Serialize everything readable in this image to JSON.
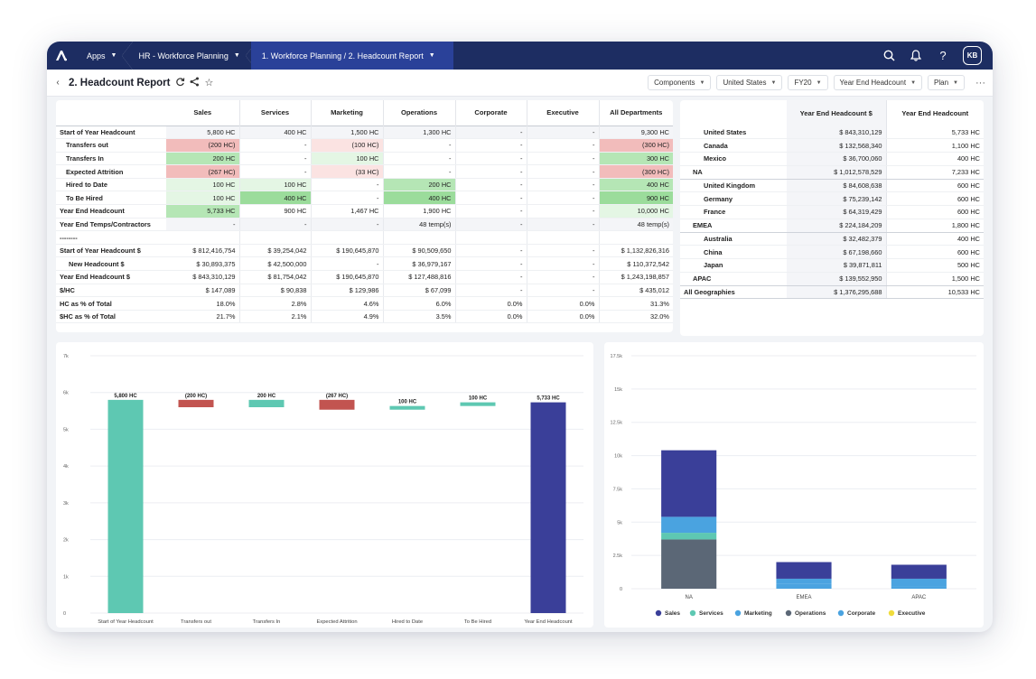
{
  "topnav": {
    "apps_label": "Apps",
    "app_name": "HR - Workforce Planning",
    "path": "1. Workforce Planning / 2. Headcount Report",
    "avatar_initials": "KB"
  },
  "header": {
    "title": "2. Headcount Report",
    "filters": [
      "Components",
      "United States",
      "FY20",
      "Year End Headcount",
      "Plan"
    ],
    "more": "···"
  },
  "main_table": {
    "columns": [
      "",
      "Sales",
      "Services",
      "Marketing",
      "Operations",
      "Corporate",
      "Executive",
      "All Departments"
    ],
    "rows": [
      {
        "label": "Start of Year Headcount",
        "cells": [
          "5,800 HC",
          "400 HC",
          "1,500 HC",
          "1,300 HC",
          "-",
          "-",
          "9,300 HC"
        ]
      },
      {
        "label": "Transfers out",
        "cells": [
          "(200 HC)",
          "-",
          "(100 HC)",
          "-",
          "-",
          "-",
          "(300 HC)"
        ]
      },
      {
        "label": "Transfers In",
        "cells": [
          "200 HC",
          "-",
          "100 HC",
          "-",
          "-",
          "-",
          "300 HC"
        ]
      },
      {
        "label": "Expected Attrition",
        "cells": [
          "(267 HC)",
          "-",
          "(33 HC)",
          "-",
          "-",
          "-",
          "(300 HC)"
        ]
      },
      {
        "label": "Hired to Date",
        "cells": [
          "100 HC",
          "100 HC",
          "-",
          "200 HC",
          "-",
          "-",
          "400 HC"
        ]
      },
      {
        "label": "To Be Hired",
        "cells": [
          "100 HC",
          "400 HC",
          "-",
          "400 HC",
          "-",
          "-",
          "900 HC"
        ]
      },
      {
        "label": "Year End Headcount",
        "cells": [
          "5,733 HC",
          "900 HC",
          "1,467 HC",
          "1,900 HC",
          "-",
          "-",
          "10,000 HC"
        ]
      },
      {
        "label": "Year End Temps/Contractors",
        "cells": [
          "-",
          "-",
          "-",
          "48 temp(s)",
          "-",
          "-",
          "48 temp(s)"
        ]
      },
      {
        "label": "--------",
        "cells": [
          "",
          "",
          "",
          "",
          "",
          "",
          ""
        ]
      },
      {
        "label": "Start of Year Headcount $",
        "cells": [
          "$ 812,416,754",
          "$ 39,254,042",
          "$ 190,645,870",
          "$ 90,509,650",
          "-",
          "-",
          "$ 1,132,826,316"
        ]
      },
      {
        "label": "New Headcount $",
        "cells": [
          "$ 30,893,375",
          "$ 42,500,000",
          "-",
          "$ 36,979,167",
          "-",
          "-",
          "$ 110,372,542"
        ]
      },
      {
        "label": "Year End Headcount $",
        "cells": [
          "$ 843,310,129",
          "$ 81,754,042",
          "$ 190,645,870",
          "$ 127,488,816",
          "-",
          "-",
          "$ 1,243,198,857"
        ]
      },
      {
        "label": "$/HC",
        "cells": [
          "$ 147,089",
          "$ 90,838",
          "$ 129,986",
          "$ 67,099",
          "-",
          "-",
          "$ 435,012"
        ]
      },
      {
        "label": "HC as % of Total",
        "cells": [
          "18.0%",
          "2.8%",
          "4.6%",
          "6.0%",
          "0.0%",
          "0.0%",
          "31.3%"
        ]
      },
      {
        "label": "$HC as % of Total",
        "cells": [
          "21.7%",
          "2.1%",
          "4.9%",
          "3.5%",
          "0.0%",
          "0.0%",
          "32.0%"
        ]
      }
    ]
  },
  "geo_table": {
    "columns": [
      "",
      "Year End Headcount $",
      "Year End Headcount"
    ],
    "rows": [
      {
        "label": "United States",
        "cells": [
          "$ 843,310,129",
          "5,733 HC"
        ]
      },
      {
        "label": "Canada",
        "cells": [
          "$ 132,568,340",
          "1,100 HC"
        ]
      },
      {
        "label": "Mexico",
        "cells": [
          "$ 36,700,060",
          "400 HC"
        ]
      },
      {
        "label": "NA",
        "cells": [
          "$ 1,012,578,529",
          "7,233 HC"
        ]
      },
      {
        "label": "United Kingdom",
        "cells": [
          "$ 84,608,638",
          "600 HC"
        ]
      },
      {
        "label": "Germany",
        "cells": [
          "$ 75,239,142",
          "600 HC"
        ]
      },
      {
        "label": "France",
        "cells": [
          "$ 64,319,429",
          "600 HC"
        ]
      },
      {
        "label": "EMEA",
        "cells": [
          "$ 224,184,209",
          "1,800 HC"
        ]
      },
      {
        "label": "Australia",
        "cells": [
          "$ 32,482,379",
          "400 HC"
        ]
      },
      {
        "label": "China",
        "cells": [
          "$ 67,198,660",
          "600 HC"
        ]
      },
      {
        "label": "Japan",
        "cells": [
          "$ 39,871,811",
          "500 HC"
        ]
      },
      {
        "label": "APAC",
        "cells": [
          "$ 139,552,950",
          "1,500 HC"
        ]
      },
      {
        "label": "All Geographies",
        "cells": [
          "$ 1,376,295,688",
          "10,533 HC"
        ]
      }
    ]
  },
  "chart_data": [
    {
      "type": "bar",
      "subtype": "waterfall",
      "categories": [
        "Start of Year Headcount",
        "Transfers out",
        "Transfers In",
        "Expected Attrition",
        "Hired to Date",
        "To Be Hired",
        "Year End Headcount"
      ],
      "values": [
        5800,
        -200,
        200,
        -267,
        100,
        100,
        5733
      ],
      "data_labels": [
        "5,800 HC",
        "(200 HC)",
        "200 HC",
        "(267 HC)",
        "100 HC",
        "100 HC",
        "5,733 HC"
      ],
      "ytick_labels": [
        "0",
        "1k",
        "2k",
        "3k",
        "4k",
        "5k",
        "6k",
        "7k"
      ],
      "ylim": [
        0,
        7000
      ],
      "colors": {
        "total_start": "#5ec8b2",
        "increase": "#5ec8b2",
        "decrease": "#c25450",
        "total_end": "#3a3f99"
      }
    },
    {
      "type": "bar",
      "subtype": "stacked",
      "categories": [
        "NA",
        "EMEA",
        "APAC"
      ],
      "series": [
        {
          "name": "Sales",
          "color": "#3a3f99",
          "values": [
            5000,
            1250,
            1050
          ]
        },
        {
          "name": "Services",
          "color": "#5ec8b2",
          "values": [
            500,
            0,
            0
          ]
        },
        {
          "name": "Marketing",
          "color": "#4aa3e0",
          "values": [
            1200,
            350,
            200
          ]
        },
        {
          "name": "Operations",
          "color": "#5b6776",
          "values": [
            3700,
            0,
            0
          ]
        },
        {
          "name": "Corporate",
          "color": "#4aa3e0",
          "values": [
            0,
            400,
            550
          ]
        },
        {
          "name": "Executive",
          "color": "#f0dc3c",
          "values": [
            0,
            0,
            0
          ]
        }
      ],
      "ytick_labels": [
        "0",
        "2.5k",
        "5k",
        "7.5k",
        "10k",
        "12.5k",
        "15k",
        "17.5k"
      ],
      "ylim": [
        0,
        17500
      ]
    }
  ]
}
